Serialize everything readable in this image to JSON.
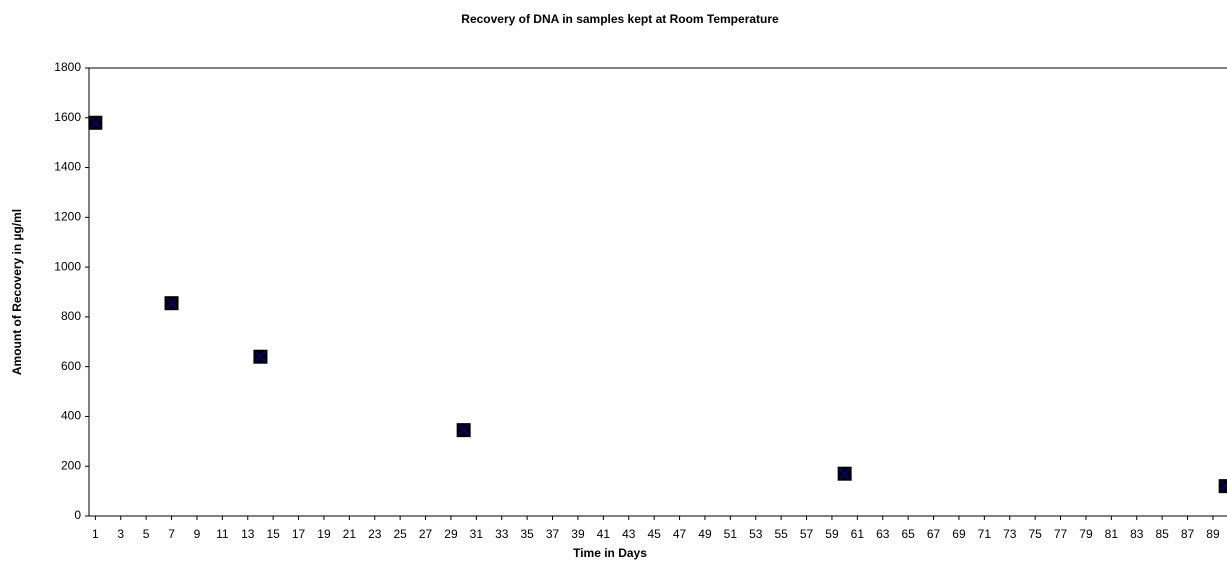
{
  "chart_data": {
    "type": "scatter",
    "title": "Recovery of DNA in samples kept at Room Temperature",
    "x_label": "Time in Days",
    "y_label": "Amount of Recovery in µg/ml",
    "series": [
      {
        "color": "#000080",
        "x": [
          1,
          7,
          14,
          30,
          60,
          90
        ],
        "values": [
          1580,
          855,
          640,
          345,
          170,
          120
        ]
      }
    ],
    "xlim": [
      0.5,
      90.5
    ],
    "xticks": [
      1,
      3,
      5,
      7,
      9,
      11,
      13,
      15,
      17,
      19,
      21,
      23,
      25,
      27,
      29,
      31,
      33,
      35,
      37,
      39,
      41,
      43,
      45,
      47,
      49,
      51,
      53,
      55,
      57,
      59,
      61,
      63,
      65,
      67,
      69,
      71,
      73,
      75,
      77,
      79,
      81,
      83,
      85,
      87,
      89
    ],
    "ylim": [
      0,
      1800
    ],
    "yticks": [
      0,
      200,
      400,
      600,
      800,
      1000,
      1200,
      1400,
      1600,
      1800
    ],
    "grid": false
  }
}
